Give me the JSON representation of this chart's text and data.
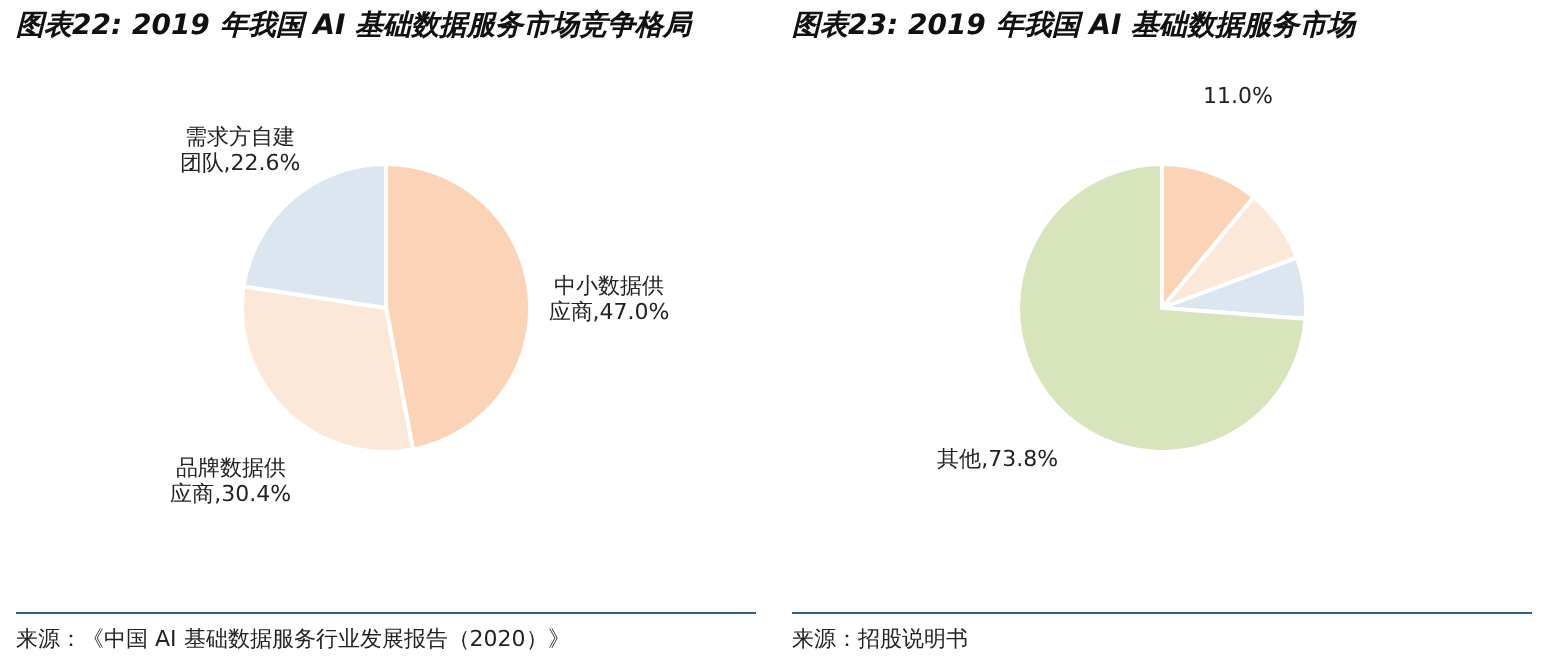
{
  "chart_data": [
    {
      "type": "pie",
      "title": "图表22:  2019 年我国 AI 基础数据服务市场竞争格局",
      "categories": [
        "中小数据供应商",
        "品牌数据供应商",
        "需求方自建团队"
      ],
      "values": [
        47.0,
        30.4,
        22.6
      ],
      "colors": [
        "#fbd4b7",
        "#fce8d9",
        "#dce6f1"
      ],
      "value_labels": [
        "47.0%",
        "30.4%",
        "22.6%"
      ],
      "annotations": [
        "来源：《中国 AI 基础数据服务行业发展报告（2020）》"
      ]
    },
    {
      "type": "pie",
      "title": "图表23:  2019 年我国 AI 基础数据服务市场",
      "categories": [
        null,
        null,
        null,
        "其他"
      ],
      "values": [
        11.0,
        8.3,
        6.9,
        73.8
      ],
      "colors": [
        "#fbd4b7",
        "#fce8d9",
        "#dce6f1",
        "#d8e4bc"
      ],
      "value_labels": [
        "11.0%",
        null,
        null,
        "73.8%"
      ],
      "annotations": [
        "来源：招股说明书"
      ]
    }
  ]
}
